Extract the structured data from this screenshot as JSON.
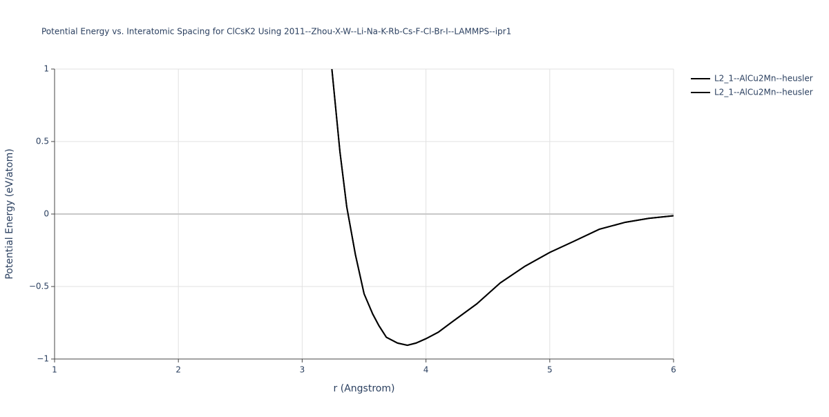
{
  "chart_data": {
    "type": "line",
    "title": "Potential Energy vs. Interatomic Spacing for ClCsK2 Using 2011--Zhou-X-W--Li-Na-K-Rb-Cs-F-Cl-Br-I--LAMMPS--ipr1",
    "x_label": "r (Angstrom)",
    "y_label": "Potential Energy (eV/atom)",
    "x": [
      3.24,
      3.305,
      3.36,
      3.43,
      3.5,
      3.57,
      3.62,
      3.68,
      3.77,
      3.85,
      3.92,
      4.0,
      4.1,
      4.21,
      4.41,
      4.6,
      4.8,
      5.0,
      5.19,
      5.4,
      5.61,
      5.8,
      6.0
    ],
    "series": [
      {
        "name": "L2_1--AlCu2Mn--heusler",
        "color": "#000000",
        "values": [
          1.0,
          0.43,
          0.05,
          -0.28,
          -0.55,
          -0.69,
          -0.77,
          -0.85,
          -0.89,
          -0.905,
          -0.89,
          -0.86,
          -0.815,
          -0.745,
          -0.62,
          -0.475,
          -0.36,
          -0.265,
          -0.19,
          -0.105,
          -0.057,
          -0.03,
          -0.012
        ]
      },
      {
        "name": "L2_1--AlCu2Mn--heusler",
        "color": "#000000",
        "values": [
          1.0,
          0.43,
          0.05,
          -0.28,
          -0.55,
          -0.69,
          -0.77,
          -0.85,
          -0.89,
          -0.905,
          -0.89,
          -0.86,
          -0.815,
          -0.745,
          -0.62,
          -0.475,
          -0.36,
          -0.265,
          -0.19,
          -0.105,
          -0.057,
          -0.03,
          -0.012
        ]
      }
    ],
    "xlim": [
      1,
      6
    ],
    "ylim": [
      -1,
      1
    ],
    "xticks": [
      1,
      2,
      3,
      4,
      5,
      6
    ],
    "yticks": [
      {
        "value": -1,
        "label": "−1"
      },
      {
        "value": -0.5,
        "label": "−0.5"
      },
      0,
      0.5,
      1
    ],
    "grid": true,
    "legend": "top-right"
  }
}
